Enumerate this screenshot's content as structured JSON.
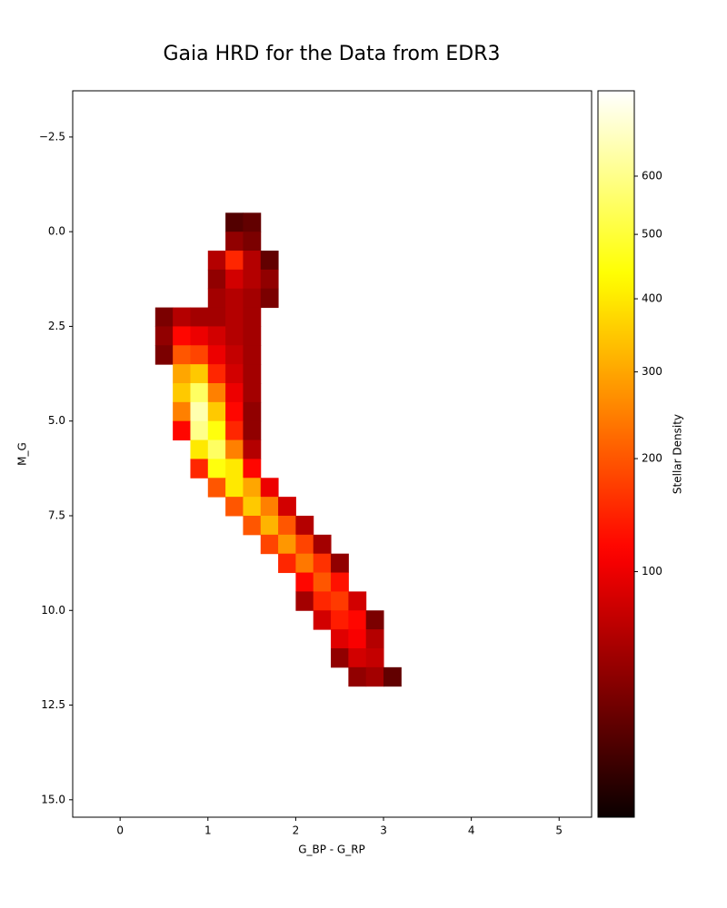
{
  "chart_data": {
    "type": "hist2d",
    "title": "Gaia HRD for the Data from EDR3",
    "x_label": "G_BP - G_RP",
    "y_label": "M_G",
    "colorbar_label": "Stellar Density",
    "colormap": "hot",
    "color_norm": "power",
    "color_gamma": 0.5,
    "clim": [
      1,
      763
    ],
    "cticks": [
      100,
      200,
      300,
      400,
      500,
      600
    ],
    "xlim": [
      -0.54,
      5.37
    ],
    "xticks": [
      0,
      1,
      2,
      3,
      4,
      5
    ],
    "ylim": [
      -3.72,
      15.46
    ],
    "y_inverted": true,
    "yticks": [
      {
        "value": -2.5,
        "label": "−2.5"
      },
      {
        "value": 0,
        "label": "0.0"
      },
      2.5,
      {
        "value": 5,
        "label": "5.0"
      },
      7.5,
      {
        "value": 10,
        "label": "10.0"
      },
      12.5,
      {
        "value": 15,
        "label": "15.0"
      }
    ],
    "xbins": [
      0.4,
      0.6,
      0.8,
      1.0,
      1.2,
      1.4,
      1.6,
      1.8,
      2.0,
      2.2,
      2.4,
      2.6,
      2.8,
      3.0,
      3.2
    ],
    "ybins": [
      -0.5,
      0,
      0.5,
      1,
      1.5,
      2,
      2.5,
      3,
      3.5,
      4,
      4.5,
      5,
      5.5,
      6,
      6.5,
      7,
      7.5,
      8,
      8.5,
      9,
      9.5,
      10,
      10.5,
      11,
      11.5,
      12
    ],
    "counts": [
      [
        null,
        null,
        null,
        null,
        15,
        20,
        null,
        null,
        null,
        null,
        null,
        null,
        null,
        null
      ],
      [
        null,
        null,
        null,
        null,
        40,
        30,
        null,
        null,
        null,
        null,
        null,
        null,
        null,
        null
      ],
      [
        null,
        null,
        null,
        60,
        150,
        60,
        20,
        null,
        null,
        null,
        null,
        null,
        null,
        null
      ],
      [
        null,
        null,
        null,
        40,
        80,
        60,
        40,
        null,
        null,
        null,
        null,
        null,
        null,
        null
      ],
      [
        null,
        null,
        null,
        50,
        60,
        50,
        30,
        null,
        null,
        null,
        null,
        null,
        null,
        null
      ],
      [
        30,
        60,
        50,
        50,
        60,
        50,
        null,
        null,
        null,
        null,
        null,
        null,
        null,
        null
      ],
      [
        40,
        120,
        100,
        80,
        60,
        50,
        null,
        null,
        null,
        null,
        null,
        null,
        null,
        null
      ],
      [
        30,
        200,
        180,
        100,
        70,
        50,
        null,
        null,
        null,
        null,
        null,
        null,
        null,
        null
      ],
      [
        null,
        300,
        350,
        150,
        80,
        50,
        null,
        null,
        null,
        null,
        null,
        null,
        null,
        null
      ],
      [
        null,
        350,
        550,
        250,
        100,
        50,
        null,
        null,
        null,
        null,
        null,
        null,
        null,
        null
      ],
      [
        null,
        250,
        650,
        350,
        120,
        40,
        null,
        null,
        null,
        null,
        null,
        null,
        null,
        null
      ],
      [
        null,
        120,
        600,
        450,
        150,
        40,
        null,
        null,
        null,
        null,
        null,
        null,
        null,
        null
      ],
      [
        null,
        null,
        400,
        550,
        250,
        60,
        null,
        null,
        null,
        null,
        null,
        null,
        null,
        null
      ],
      [
        null,
        null,
        150,
        450,
        400,
        120,
        null,
        null,
        null,
        null,
        null,
        null,
        null,
        null
      ],
      [
        null,
        null,
        null,
        200,
        400,
        300,
        100,
        null,
        null,
        null,
        null,
        null,
        null,
        null
      ],
      [
        null,
        null,
        null,
        null,
        200,
        350,
        250,
        80,
        null,
        null,
        null,
        null,
        null,
        null
      ],
      [
        null,
        null,
        null,
        null,
        null,
        200,
        320,
        200,
        60,
        null,
        null,
        null,
        null,
        null
      ],
      [
        null,
        null,
        null,
        null,
        null,
        null,
        180,
        280,
        180,
        50,
        null,
        null,
        null,
        null
      ],
      [
        null,
        null,
        null,
        null,
        null,
        null,
        null,
        150,
        240,
        160,
        40,
        null,
        null,
        null
      ],
      [
        null,
        null,
        null,
        null,
        null,
        null,
        null,
        null,
        120,
        200,
        130,
        null,
        null,
        null
      ],
      [
        null,
        null,
        null,
        null,
        null,
        null,
        null,
        null,
        50,
        150,
        170,
        80,
        null,
        null
      ],
      [
        null,
        null,
        null,
        null,
        null,
        null,
        null,
        null,
        null,
        80,
        140,
        120,
        30,
        null
      ],
      [
        null,
        null,
        null,
        null,
        null,
        null,
        null,
        null,
        null,
        null,
        90,
        110,
        60,
        null
      ],
      [
        null,
        null,
        null,
        null,
        null,
        null,
        null,
        null,
        null,
        null,
        40,
        80,
        70,
        null
      ],
      [
        null,
        null,
        null,
        null,
        null,
        null,
        null,
        null,
        null,
        null,
        null,
        40,
        50,
        20
      ]
    ]
  }
}
